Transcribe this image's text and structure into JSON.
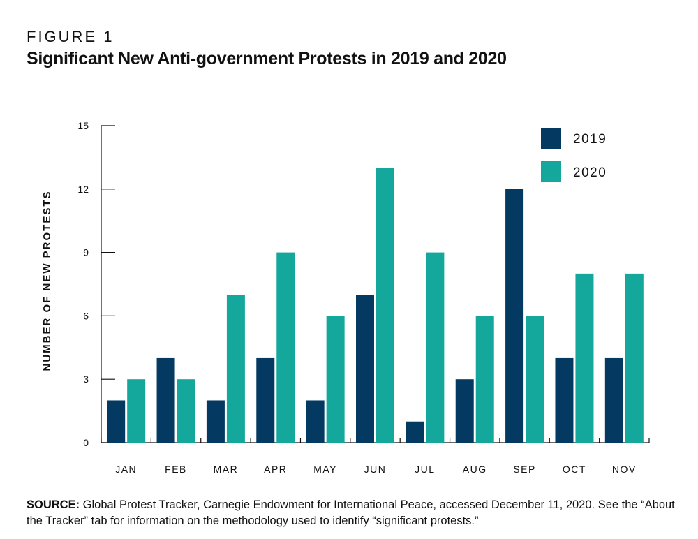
{
  "figure_label": "FIGURE 1",
  "chart_data": {
    "type": "bar",
    "title": "Significant New Anti-government Protests in 2019 and 2020",
    "ylabel": "NUMBER OF NEW PROTESTS",
    "xlabel": "",
    "ylim": [
      0,
      15
    ],
    "yticks": [
      0,
      3,
      6,
      9,
      12,
      15
    ],
    "categories": [
      "JAN",
      "FEB",
      "MAR",
      "APR",
      "MAY",
      "JUN",
      "JUL",
      "AUG",
      "SEP",
      "OCT",
      "NOV"
    ],
    "series": [
      {
        "name": "2019",
        "color": "#043a62",
        "values": [
          2,
          4,
          2,
          4,
          2,
          7,
          1,
          3,
          12,
          4,
          4
        ]
      },
      {
        "name": "2020",
        "color": "#14a89c",
        "values": [
          3,
          3,
          7,
          9,
          6,
          13,
          9,
          6,
          6,
          8,
          8
        ]
      }
    ],
    "legend_position": "top-right",
    "grid": false
  },
  "source": {
    "label": "SOURCE:",
    "text": " Global Protest Tracker, Carnegie Endowment for International Peace, accessed December 11, 2020. See the “About the Tracker” tab for information on the methodology used to identify “significant protests.”"
  }
}
